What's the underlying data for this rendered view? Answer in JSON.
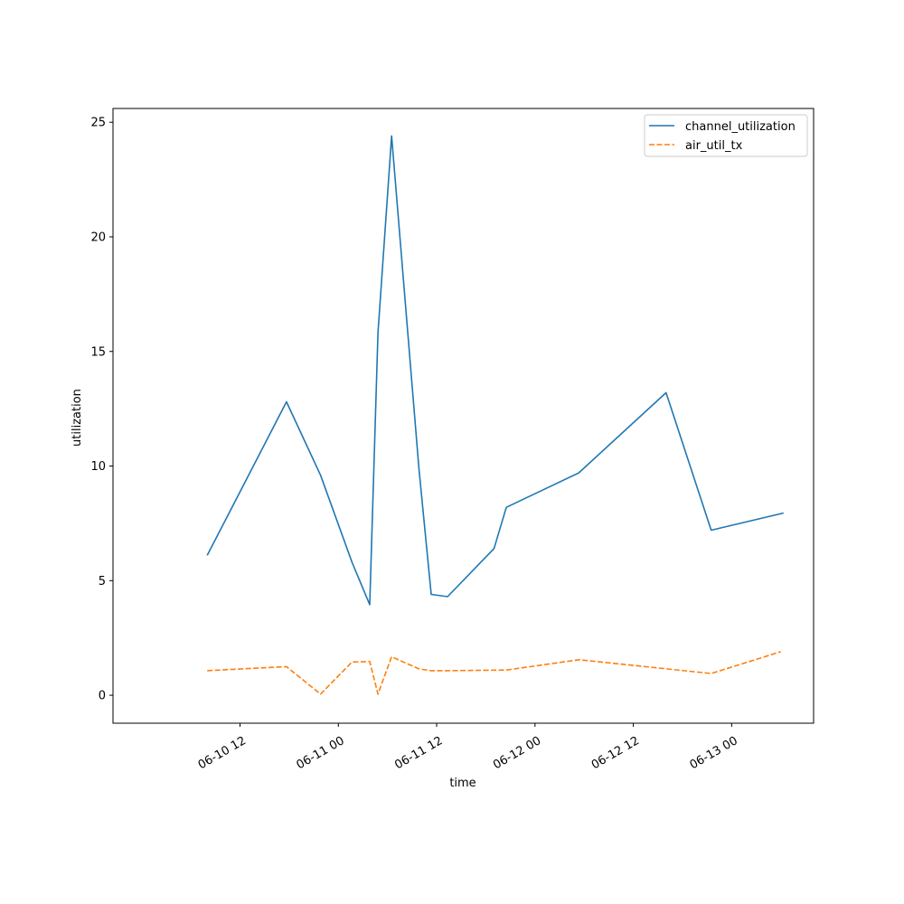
{
  "chart_data": {
    "type": "line",
    "title": "",
    "xlabel": "time",
    "ylabel": "utilization",
    "x_tick_labels": [
      "06-10 12",
      "06-11 00",
      "06-11 12",
      "06-12 00",
      "06-12 12",
      "06-13 00"
    ],
    "x_ticks": [
      "2024-06-10 12:00",
      "2024-06-11 00:00",
      "2024-06-11 12:00",
      "2024-06-12 00:00",
      "2024-06-12 12:00",
      "2024-06-13 00:00"
    ],
    "xlim": [
      "2024-06-09 20:30",
      "2024-06-13 10:00"
    ],
    "y_ticks": [
      0,
      5,
      10,
      15,
      20,
      25
    ],
    "ylim": [
      -1.22,
      25.6
    ],
    "grid": false,
    "legend_position": "top-right",
    "series": [
      {
        "name": "channel_utilization",
        "color": "#1f77b4",
        "style": "solid",
        "points": [
          {
            "x": "2024-06-10 08:00",
            "y": 6.1
          },
          {
            "x": "2024-06-10 17:40",
            "y": 12.8
          },
          {
            "x": "2024-06-10 21:50",
            "y": 9.6
          },
          {
            "x": "2024-06-11 01:40",
            "y": 5.8
          },
          {
            "x": "2024-06-11 03:50",
            "y": 3.95
          },
          {
            "x": "2024-06-11 04:50",
            "y": 15.8
          },
          {
            "x": "2024-06-11 06:30",
            "y": 24.4
          },
          {
            "x": "2024-06-11 09:50",
            "y": 9.9
          },
          {
            "x": "2024-06-11 11:20",
            "y": 4.4
          },
          {
            "x": "2024-06-11 13:20",
            "y": 4.3
          },
          {
            "x": "2024-06-11 19:00",
            "y": 6.4
          },
          {
            "x": "2024-06-11 20:30",
            "y": 8.2
          },
          {
            "x": "2024-06-12 05:20",
            "y": 9.7
          },
          {
            "x": "2024-06-12 16:00",
            "y": 13.2
          },
          {
            "x": "2024-06-12 21:30",
            "y": 7.2
          },
          {
            "x": "2024-06-13 06:20",
            "y": 7.95
          }
        ]
      },
      {
        "name": "air_util_tx",
        "color": "#ff7f0e",
        "style": "dashed",
        "points": [
          {
            "x": "2024-06-10 08:00",
            "y": 1.07
          },
          {
            "x": "2024-06-10 17:40",
            "y": 1.25
          },
          {
            "x": "2024-06-10 21:50",
            "y": 0.05
          },
          {
            "x": "2024-06-11 01:40",
            "y": 1.45
          },
          {
            "x": "2024-06-11 03:50",
            "y": 1.47
          },
          {
            "x": "2024-06-11 04:50",
            "y": 0.05
          },
          {
            "x": "2024-06-11 06:30",
            "y": 1.68
          },
          {
            "x": "2024-06-11 09:50",
            "y": 1.15
          },
          {
            "x": "2024-06-11 11:20",
            "y": 1.07
          },
          {
            "x": "2024-06-11 13:20",
            "y": 1.07
          },
          {
            "x": "2024-06-11 20:30",
            "y": 1.1
          },
          {
            "x": "2024-06-12 05:20",
            "y": 1.55
          },
          {
            "x": "2024-06-12 21:30",
            "y": 0.95
          },
          {
            "x": "2024-06-13 06:00",
            "y": 1.9
          }
        ]
      }
    ]
  }
}
